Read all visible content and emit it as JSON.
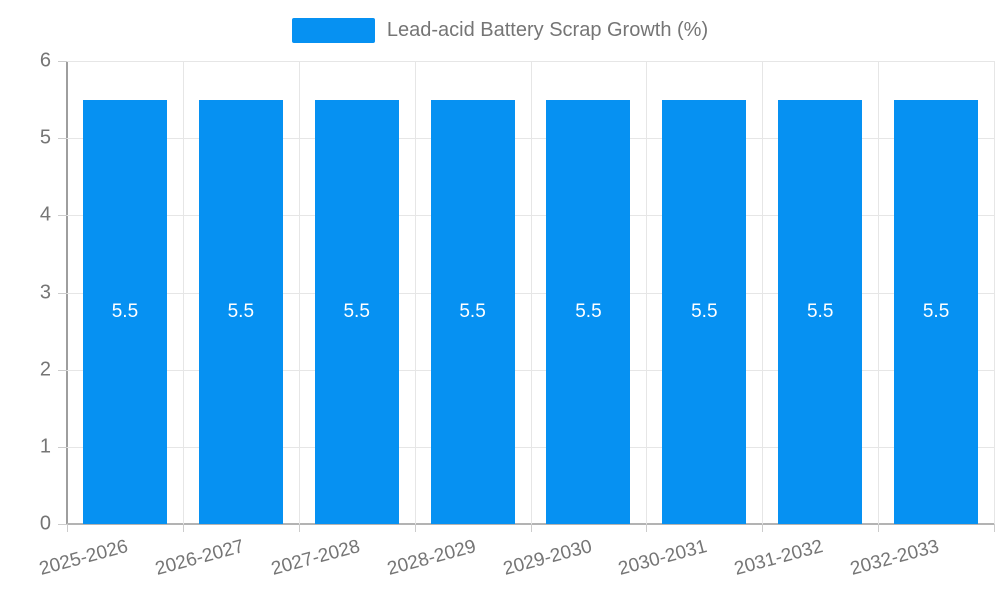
{
  "chart_data": {
    "type": "bar",
    "title": "Lead-acid Battery Scrap Growth (%)",
    "categories": [
      "2025-2026",
      "2026-2027",
      "2027-2028",
      "2028-2029",
      "2029-2030",
      "2030-2031",
      "2031-2032",
      "2032-2033"
    ],
    "values": [
      5.5,
      5.5,
      5.5,
      5.5,
      5.5,
      5.5,
      5.5,
      5.5
    ],
    "bar_value_labels": [
      "5.5",
      "5.5",
      "5.5",
      "5.5",
      "5.5",
      "5.5",
      "5.5",
      "5.5"
    ],
    "xlabel": "",
    "ylabel": "",
    "ylim": [
      0,
      6
    ],
    "yticks": [
      "0",
      "1",
      "2",
      "3",
      "4",
      "5",
      "6"
    ],
    "grid": true,
    "legend_position": "top",
    "x_label_rotation_deg": -15
  },
  "colors": {
    "bar": "#0691F2",
    "bar_value_text": "#FFFFFF",
    "axis_line": "#9E9E9E",
    "bottom_axis_line": "#B3B3B3",
    "gridline": "#E6E6E6",
    "tick_mark": "#CCCCCC",
    "label_text": "#757575",
    "background": "#FFFFFF"
  }
}
